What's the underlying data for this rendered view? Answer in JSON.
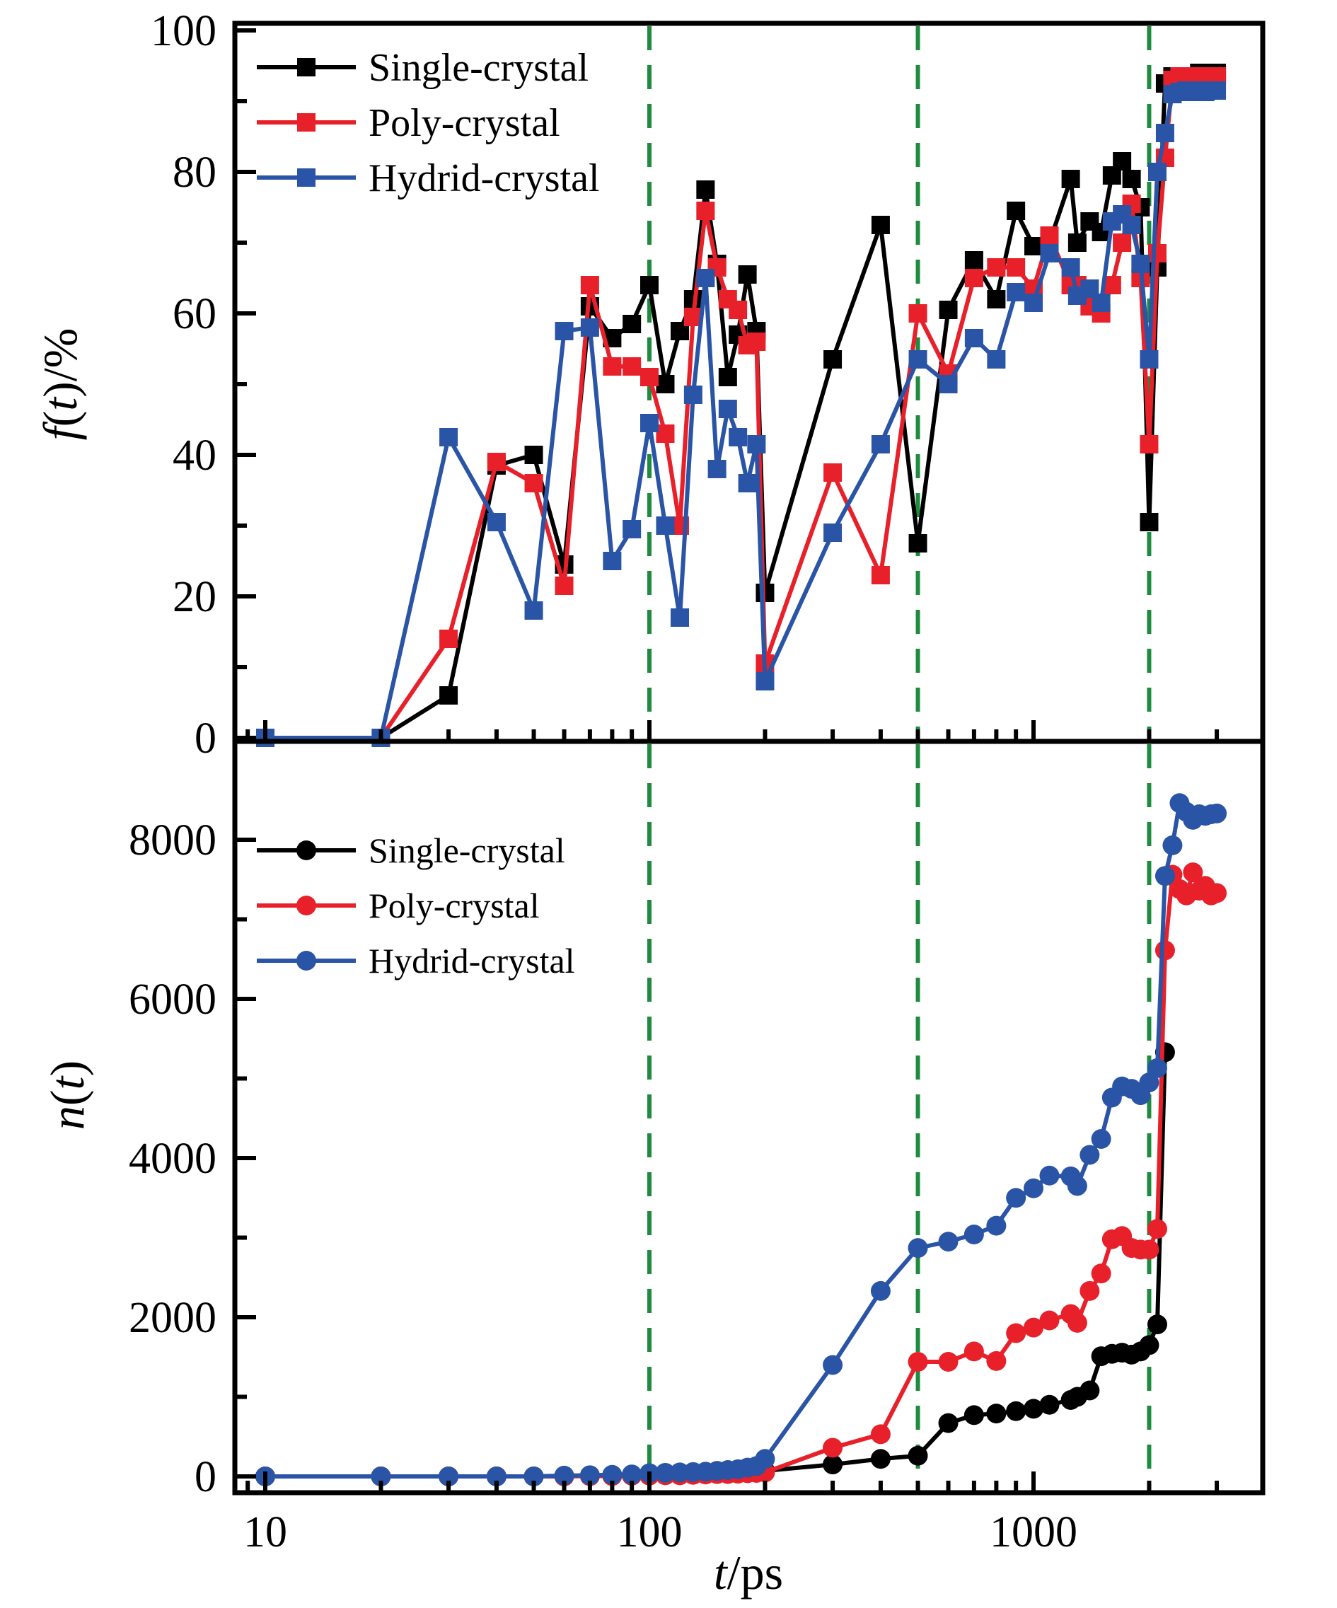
{
  "figure": {
    "xlabel_parts": [
      {
        "text": "t",
        "italic": true
      },
      {
        "text": "/ps",
        "italic": false
      }
    ],
    "x_tick_labels": [
      {
        "value": 10,
        "label": "10"
      },
      {
        "value": 100,
        "label": "100"
      },
      {
        "value": 1000,
        "label": "1000"
      }
    ],
    "colors": {
      "black": "#000000",
      "red": "#e8202a",
      "blue": "#2a54a6",
      "green_dashed": "#1f8b3f"
    }
  },
  "chart_data": [
    {
      "type": "line",
      "panel": "top",
      "xscale": "log",
      "xlim": [
        8.34,
        3920
      ],
      "ylim": [
        0,
        100
      ],
      "ylabel_parts": [
        {
          "text": "f",
          "italic": true
        },
        {
          "text": "(",
          "italic": false
        },
        {
          "text": "t",
          "italic": true
        },
        {
          "text": ")/%",
          "italic": false
        }
      ],
      "yticks": [
        {
          "value": 0,
          "label": "0"
        },
        {
          "value": 20,
          "label": "20"
        },
        {
          "value": 40,
          "label": "40"
        },
        {
          "value": 60,
          "label": "60"
        },
        {
          "value": 80,
          "label": "80"
        },
        {
          "value": 100,
          "label": "100"
        }
      ],
      "yminor": [
        10,
        30,
        50,
        70,
        90
      ],
      "vlines": [
        100,
        500,
        2000
      ],
      "legend": [
        {
          "label": "Single-crystal",
          "color": "#000000",
          "marker": "square"
        },
        {
          "label": "Poly-crystal",
          "color": "#e8202a",
          "marker": "square"
        },
        {
          "label": "Hydrid-crystal",
          "color": "#2a54a6",
          "marker": "square"
        }
      ],
      "series": [
        {
          "name": "Single-crystal",
          "color": "#000000",
          "marker": "square",
          "x": [
            10,
            20,
            30,
            40,
            50,
            60,
            70,
            80,
            90,
            100,
            110,
            120,
            130,
            140,
            150,
            160,
            170,
            180,
            190,
            200,
            300,
            400,
            500,
            600,
            700,
            800,
            900,
            1000,
            1100,
            1250,
            1300,
            1400,
            1500,
            1600,
            1700,
            1800,
            1900,
            2000,
            2100,
            2200,
            2300,
            2400,
            2500,
            2600,
            2700,
            2800,
            2900,
            3000
          ],
          "y": [
            0,
            0,
            6,
            38.5,
            40,
            24.5,
            61,
            56.5,
            58.5,
            64,
            50,
            57.5,
            62,
            77.5,
            67,
            51,
            57,
            65.5,
            57.5,
            20.5,
            53.5,
            72.5,
            27.5,
            60.5,
            67.5,
            62,
            74.5,
            69.5,
            70,
            79,
            70,
            73,
            71.5,
            79.5,
            81.5,
            79,
            75,
            30.5,
            66.5,
            92.5,
            93.5,
            93.5,
            93.5,
            93.5,
            94,
            94,
            94,
            94
          ]
        },
        {
          "name": "Poly-crystal",
          "color": "#e8202a",
          "marker": "square",
          "x": [
            10,
            20,
            30,
            40,
            50,
            60,
            70,
            80,
            90,
            100,
            110,
            120,
            130,
            140,
            150,
            160,
            170,
            180,
            190,
            200,
            300,
            400,
            500,
            600,
            700,
            800,
            900,
            1000,
            1100,
            1250,
            1300,
            1400,
            1500,
            1600,
            1700,
            1800,
            1900,
            2000,
            2100,
            2200,
            2300,
            2400,
            2500,
            2600,
            2700,
            2800,
            2900,
            3000
          ],
          "y": [
            0,
            0,
            14,
            39,
            36,
            21.5,
            64,
            52.5,
            52.5,
            51,
            43,
            30,
            59.5,
            74.5,
            66.5,
            62,
            60.5,
            55.5,
            56,
            10.5,
            37.5,
            23,
            60,
            51.5,
            65,
            66.5,
            66.5,
            63.5,
            71,
            64,
            64,
            61,
            60,
            64,
            70,
            75.5,
            65,
            41.5,
            68.5,
            82,
            93,
            93.5,
            93,
            93.5,
            93,
            93.5,
            93.3,
            93.5
          ]
        },
        {
          "name": "Hydrid-crystal",
          "color": "#2a54a6",
          "marker": "square",
          "x": [
            10,
            20,
            30,
            40,
            50,
            60,
            70,
            80,
            90,
            100,
            110,
            120,
            130,
            140,
            150,
            160,
            170,
            180,
            190,
            200,
            300,
            400,
            500,
            600,
            700,
            800,
            900,
            1000,
            1100,
            1250,
            1300,
            1400,
            1500,
            1600,
            1700,
            1800,
            1900,
            2000,
            2100,
            2200,
            2300,
            2400,
            2500,
            2600,
            2700,
            2800,
            2900,
            3000
          ],
          "y": [
            0,
            0,
            42.5,
            30.5,
            18,
            57.5,
            58,
            25,
            29.5,
            44.5,
            30,
            17,
            48.5,
            65,
            38,
            46.5,
            42.5,
            36,
            41.5,
            8,
            29,
            41.5,
            53.5,
            50,
            56.5,
            53.5,
            63,
            61.5,
            68.5,
            66.5,
            62.5,
            63.5,
            61.5,
            73,
            74,
            72.5,
            67,
            53.5,
            80,
            85.5,
            91,
            91.3,
            91.5,
            91.3,
            91.5,
            91.3,
            91.5,
            91.5
          ]
        }
      ]
    },
    {
      "type": "line",
      "panel": "bottom",
      "xscale": "log",
      "xlim": [
        8.34,
        3920
      ],
      "ylim": [
        0,
        9200
      ],
      "ylabel_parts": [
        {
          "text": "n",
          "italic": true
        },
        {
          "text": "(",
          "italic": false
        },
        {
          "text": "t",
          "italic": true
        },
        {
          "text": ")",
          "italic": false
        }
      ],
      "yticks": [
        {
          "value": 0,
          "label": "0"
        },
        {
          "value": 2000,
          "label": "2000"
        },
        {
          "value": 4000,
          "label": "4000"
        },
        {
          "value": 6000,
          "label": "6000"
        },
        {
          "value": 8000,
          "label": "8000"
        }
      ],
      "yminor": [
        1000,
        3000,
        5000,
        7000
      ],
      "vlines": [
        100,
        500,
        2000
      ],
      "legend": [
        {
          "label": "Single-crystal",
          "color": "#000000",
          "marker": "circle"
        },
        {
          "label": "Poly-crystal",
          "color": "#e8202a",
          "marker": "circle"
        },
        {
          "label": "Hydrid-crystal",
          "color": "#2a54a6",
          "marker": "circle"
        }
      ],
      "series": [
        {
          "name": "Single-crystal",
          "color": "#000000",
          "marker": "circle",
          "x": [
            10,
            20,
            30,
            40,
            50,
            60,
            70,
            80,
            90,
            100,
            110,
            120,
            130,
            140,
            150,
            160,
            170,
            180,
            190,
            200,
            300,
            400,
            500,
            600,
            700,
            800,
            900,
            1000,
            1100,
            1250,
            1300,
            1400,
            1500,
            1600,
            1700,
            1800,
            1900,
            2000,
            2100,
            2200
          ],
          "y": [
            0,
            0,
            0,
            0,
            0,
            5,
            5,
            10,
            10,
            20,
            20,
            25,
            30,
            35,
            40,
            45,
            50,
            55,
            60,
            70,
            150,
            220,
            260,
            670,
            770,
            790,
            820,
            850,
            900,
            960,
            1000,
            1080,
            1510,
            1540,
            1555,
            1530,
            1570,
            1650,
            1910,
            5330
          ]
        },
        {
          "name": "Poly-crystal",
          "color": "#e8202a",
          "marker": "circle",
          "x": [
            10,
            20,
            30,
            40,
            50,
            60,
            70,
            80,
            90,
            100,
            110,
            120,
            130,
            140,
            150,
            160,
            170,
            180,
            190,
            200,
            300,
            400,
            500,
            600,
            700,
            800,
            900,
            1000,
            1100,
            1250,
            1300,
            1400,
            1500,
            1600,
            1700,
            1800,
            1900,
            2000,
            2100,
            2200,
            2300,
            2400,
            2500,
            2600,
            2700,
            2800,
            2900,
            3000
          ],
          "y": [
            0,
            0,
            0,
            0,
            0,
            0,
            5,
            5,
            10,
            10,
            15,
            15,
            20,
            25,
            30,
            30,
            35,
            40,
            45,
            50,
            360,
            530,
            1440,
            1440,
            1570,
            1450,
            1800,
            1870,
            1960,
            2040,
            1930,
            2330,
            2550,
            2980,
            3020,
            2870,
            2850,
            2850,
            3110,
            6610,
            7560,
            7380,
            7300,
            7590,
            7360,
            7420,
            7300,
            7330
          ]
        },
        {
          "name": "Hydrid-crystal",
          "color": "#2a54a6",
          "marker": "circle",
          "x": [
            10,
            20,
            30,
            40,
            50,
            60,
            70,
            80,
            90,
            100,
            110,
            120,
            130,
            140,
            150,
            160,
            170,
            180,
            190,
            200,
            300,
            400,
            500,
            600,
            700,
            800,
            900,
            1000,
            1100,
            1250,
            1300,
            1400,
            1500,
            1600,
            1700,
            1800,
            1900,
            2000,
            2100,
            2200,
            2300,
            2400,
            2500,
            2600,
            2700,
            2800,
            2900,
            3000
          ],
          "y": [
            0,
            0,
            0,
            0,
            0,
            10,
            15,
            20,
            25,
            40,
            45,
            50,
            55,
            60,
            70,
            80,
            90,
            110,
            130,
            220,
            1400,
            2330,
            2870,
            2950,
            3040,
            3150,
            3500,
            3620,
            3780,
            3770,
            3650,
            4040,
            4240,
            4760,
            4900,
            4870,
            4790,
            4950,
            5130,
            7545,
            7930,
            8460,
            8350,
            8250,
            8320,
            8300,
            8320,
            8330
          ]
        }
      ]
    }
  ]
}
